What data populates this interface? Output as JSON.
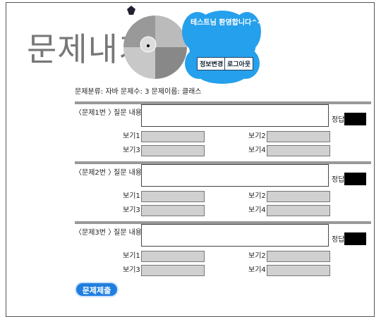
{
  "header": {
    "title": "문제내기",
    "welcome": "테스트님 환영합니다^-^",
    "buttons": [
      "정보변경",
      "로그아웃"
    ]
  },
  "info": "문제분류: 자바 문제수: 3 문제이름: 클래스",
  "questions": [
    {
      "label": "〈문제1번 〉",
      "question_label": "질문 내용",
      "answer_label": "정답",
      "options": [
        "보기1",
        "보기2",
        "보기3",
        "보기4"
      ]
    },
    {
      "label": "〈문제2번 〉",
      "question_label": "질문 내용",
      "answer_label": "정답",
      "options": [
        "보기1",
        "보기2",
        "보기3",
        "보기4"
      ]
    },
    {
      "label": "〈문제3번 〉",
      "question_label": "질문 내용",
      "answer_label": "정답",
      "options": [
        "보기1",
        "보기2",
        "보기3",
        "보기4"
      ]
    }
  ],
  "submit": "문제제출"
}
